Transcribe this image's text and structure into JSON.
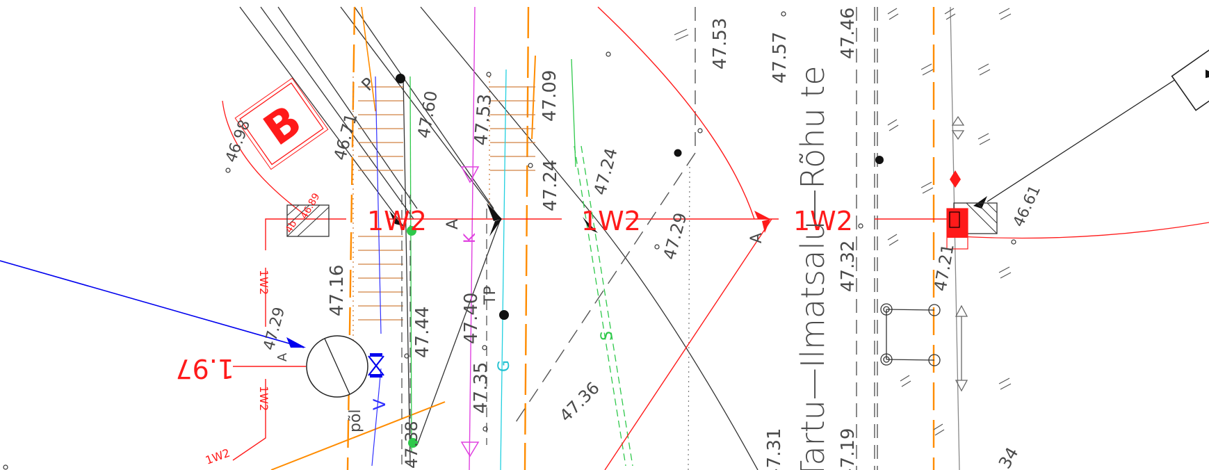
{
  "sheet": {
    "section_label": "B",
    "street_name": "Tartu—Ilmatsalu—Rõhu te",
    "cut_marker": "1W2",
    "cut_side_label": "A",
    "cut_dimension": "1.97",
    "pipe_label_v": "V",
    "pipe_label_k": "K",
    "pipe_label_g": "G",
    "pipe_label_s": "S",
    "label_tp": "TP",
    "label_p": "P",
    "label_pole": "põl",
    "small_label_4b": "4b"
  },
  "elevations": {
    "e_46_98": "46.98",
    "e_46_71": "46.71",
    "e_47_60": "47.60",
    "e_47_53a": "47.53",
    "e_47_09": "47.09",
    "e_47_24a": "47.24",
    "e_47_24b": "47.24",
    "e_47_53b": "47.53",
    "e_47_57": "47.57",
    "e_47_46": "47.46",
    "e_47_29a": "47.29",
    "e_47_16": "47.16",
    "e_47_44": "47.44",
    "e_47_40": "47.40",
    "e_47_35": "47.35",
    "e_47_36": "47.36",
    "e_47_32": "47.32",
    "e_47_21": "47.21",
    "e_46_61": "46.61",
    "e_47_38": "47.38",
    "e_47_29b": "47.29",
    "e_47_31": "47.31",
    "e_47_19": "47.19",
    "e_34": "34",
    "e_46_89": "46.89"
  },
  "colors": {
    "red": "#ff1a1a",
    "blue": "#0000ee",
    "orange": "#ff8c00",
    "magenta": "#e040e0",
    "cyan": "#20d0e0",
    "green": "#2ec84a",
    "gray": "#4a4a4a"
  }
}
